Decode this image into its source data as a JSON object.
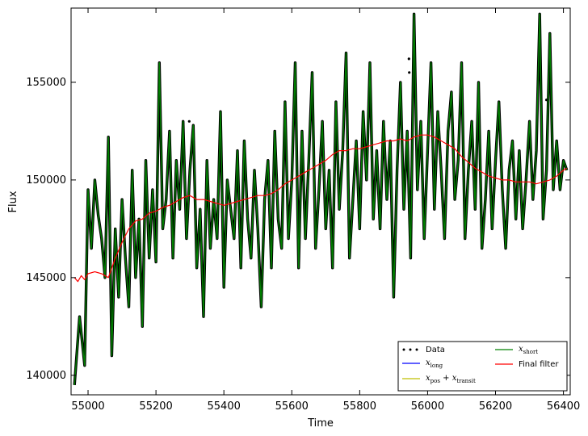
{
  "chart_data": {
    "type": "line",
    "xlabel": "Time",
    "ylabel": "Flux",
    "xlim": [
      54950,
      56420
    ],
    "ylim": [
      139000,
      158800
    ],
    "x_ticks": [
      55000,
      55200,
      55400,
      55600,
      55800,
      56000,
      56200,
      56400
    ],
    "y_ticks": [
      140000,
      145000,
      150000,
      155000
    ],
    "grid": false,
    "legend_placement": "lower-right",
    "colors": {
      "data": "#000000",
      "x_long": "#0000ff",
      "x_pos_transit": "#bfbf00",
      "x_short": "#008000",
      "final_filter": "#ff0000"
    },
    "legend": [
      {
        "key": "data",
        "label": "Data"
      },
      {
        "key": "x_long",
        "label": "x_long"
      },
      {
        "key": "x_pos_transit",
        "label": "x_pos+x_transit"
      },
      {
        "key": "x_short",
        "label": "x_short"
      },
      {
        "key": "final_filter",
        "label": "Final filter"
      }
    ],
    "series": [
      {
        "name": "x_short",
        "x": [
          54960,
          54975,
          54990,
          55000,
          55010,
          55020,
          55030,
          55040,
          55050,
          55060,
          55070,
          55080,
          55090,
          55100,
          55110,
          55120,
          55130,
          55140,
          55150,
          55160,
          55170,
          55180,
          55190,
          55200,
          55210,
          55220,
          55230,
          55240,
          55250,
          55260,
          55270,
          55280,
          55290,
          55300,
          55310,
          55320,
          55330,
          55340,
          55350,
          55360,
          55370,
          55380,
          55390,
          55400,
          55410,
          55420,
          55430,
          55440,
          55450,
          55460,
          55470,
          55480,
          55490,
          55500,
          55510,
          55520,
          55530,
          55540,
          55550,
          55560,
          55570,
          55580,
          55590,
          55600,
          55610,
          55620,
          55630,
          55640,
          55650,
          55660,
          55670,
          55680,
          55690,
          55700,
          55710,
          55720,
          55730,
          55740,
          55750,
          55760,
          55770,
          55780,
          55790,
          55800,
          55810,
          55820,
          55830,
          55840,
          55850,
          55860,
          55870,
          55880,
          55890,
          55900,
          55910,
          55920,
          55930,
          55940,
          55950,
          55960,
          55970,
          55980,
          55990,
          56000,
          56010,
          56020,
          56030,
          56040,
          56050,
          56060,
          56070,
          56080,
          56090,
          56100,
          56110,
          56120,
          56130,
          56140,
          56150,
          56160,
          56170,
          56180,
          56190,
          56200,
          56210,
          56220,
          56230,
          56240,
          56250,
          56260,
          56270,
          56280,
          56290,
          56300,
          56310,
          56320,
          56330,
          56340,
          56350,
          56360,
          56370,
          56380,
          56390,
          56400,
          56410
        ],
        "values": [
          139500,
          143000,
          140500,
          149500,
          146500,
          150000,
          148200,
          147000,
          145000,
          152200,
          141000,
          147500,
          144000,
          149000,
          146000,
          143500,
          150500,
          145000,
          148000,
          142500,
          151000,
          146000,
          149500,
          145800,
          156000,
          147500,
          149000,
          152500,
          146000,
          151000,
          148500,
          153000,
          147000,
          150500,
          152800,
          145500,
          148500,
          143000,
          151000,
          146500,
          149000,
          147000,
          153500,
          144500,
          150000,
          148500,
          147000,
          151500,
          145500,
          152000,
          148000,
          146000,
          150500,
          147500,
          143500,
          149000,
          151000,
          145500,
          152500,
          148000,
          146500,
          154000,
          147000,
          150000,
          156000,
          145500,
          152500,
          147000,
          151000,
          155500,
          146500,
          149500,
          153000,
          147500,
          150500,
          145500,
          154000,
          148500,
          151500,
          156500,
          146000,
          149000,
          152000,
          147500,
          153500,
          150000,
          156000,
          148000,
          151500,
          147500,
          153000,
          149000,
          152000,
          144000,
          150500,
          155000,
          148500,
          152500,
          146000,
          158500,
          149500,
          153000,
          147000,
          151500,
          156000,
          148500,
          153500,
          150500,
          147000,
          152500,
          154500,
          149000,
          151000,
          156000,
          147000,
          150500,
          153000,
          148500,
          155000,
          146500,
          149000,
          152500,
          147500,
          151000,
          154000,
          149500,
          146500,
          150500,
          152000,
          148000,
          151500,
          147500,
          150000,
          153000,
          149000,
          151500,
          158500,
          148000,
          150500,
          157500,
          149500,
          152000,
          149500,
          151000,
          150500
        ]
      },
      {
        "name": "Final filter",
        "x": [
          54960,
          54970,
          54980,
          54990,
          55000,
          55020,
          55040,
          55060,
          55080,
          55100,
          55120,
          55140,
          55160,
          55180,
          55200,
          55220,
          55240,
          55260,
          55280,
          55300,
          55320,
          55340,
          55360,
          55380,
          55400,
          55420,
          55440,
          55460,
          55480,
          55500,
          55520,
          55540,
          55560,
          55580,
          55600,
          55620,
          55640,
          55660,
          55680,
          55700,
          55720,
          55740,
          55760,
          55780,
          55800,
          55820,
          55840,
          55860,
          55880,
          55900,
          55920,
          55940,
          55960,
          55980,
          56000,
          56020,
          56040,
          56060,
          56080,
          56100,
          56120,
          56140,
          56160,
          56180,
          56200,
          56220,
          56240,
          56260,
          56280,
          56300,
          56320,
          56340,
          56360,
          56380,
          56400,
          56410
        ],
        "values": [
          145000,
          144800,
          145100,
          144900,
          145200,
          145300,
          145200,
          145000,
          146000,
          146800,
          147500,
          147900,
          148000,
          148300,
          148400,
          148600,
          148700,
          148900,
          149100,
          149200,
          149000,
          149000,
          148900,
          148800,
          148700,
          148800,
          148900,
          149000,
          149100,
          149200,
          149200,
          149300,
          149500,
          149800,
          150000,
          150200,
          150400,
          150600,
          150800,
          151000,
          151300,
          151500,
          151500,
          151600,
          151600,
          151700,
          151800,
          151900,
          152000,
          152000,
          152100,
          152000,
          152200,
          152300,
          152300,
          152200,
          152000,
          151800,
          151600,
          151200,
          150900,
          150600,
          150400,
          150200,
          150100,
          150000,
          150000,
          149900,
          149900,
          149900,
          149800,
          149900,
          150000,
          150200,
          150500,
          150600
        ]
      }
    ],
    "scatter_outliers": [
      {
        "x": 55298,
        "y": 153000
      },
      {
        "x": 55945,
        "y": 156200
      },
      {
        "x": 55946,
        "y": 155500
      },
      {
        "x": 56350,
        "y": 154100
      }
    ]
  }
}
